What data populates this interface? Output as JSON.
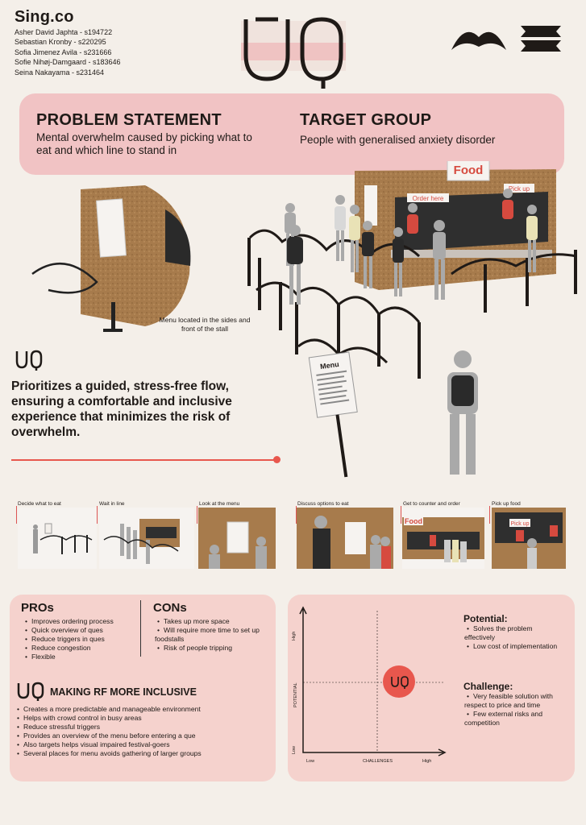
{
  "header": {
    "brand": "Sing.co",
    "members": [
      "Asher David Japhta - s194722",
      "Sebastian Kronby - s220295",
      "Sofia Jimenez Avila - s231666",
      "Sofie Nihøj-Damgaard - s183646",
      "Seina Nakayama - s231464"
    ]
  },
  "problem": {
    "title": "PROBLEM STATEMENT",
    "text": "Mental overwhelm caused by picking what to eat and which line to stand in"
  },
  "target": {
    "title": "TARGET GROUP",
    "text": "People with generalised anxiety disorder"
  },
  "scene": {
    "stall_sign": "Food",
    "order_sign": "Order here",
    "pickup_sign": "Pick up",
    "menu_sign": "Menu",
    "caption": "Menu located in the sides and front of the stall"
  },
  "statement": "Prioritizes a guided, stress-free flow, ensuring a comfortable and inclusive experience that minimizes the risk of overwhelm.",
  "journey": [
    {
      "label": "Decide what to eat"
    },
    {
      "label": "Wait in line"
    },
    {
      "label": "Look at the menu"
    },
    {
      "label": "Discuss options to eat"
    },
    {
      "label": "Get to counter and order"
    },
    {
      "label": "Pick up food"
    }
  ],
  "pros": {
    "title": "PROs",
    "items": [
      "Improves ordering process",
      "Quick overview of ques",
      "Reduce triggers in ques",
      "Reduce congestion",
      "Flexible"
    ]
  },
  "cons": {
    "title": "CONs",
    "items": [
      "Takes up more space",
      "Will require more time to set up foodstalls",
      "Risk of people tripping"
    ]
  },
  "inclusive": {
    "title": "MAKING RF MORE INCLUSIVE",
    "items": [
      "Creates a more predictable and manageable environment",
      "Helps with crowd control in busy areas",
      "Reduce stressful triggers",
      "Provides an overview of the menu before entering a que",
      "Also targets helps visual impaired festival-goers",
      "Several places for menu avoids gathering of larger groups"
    ]
  },
  "matrix": {
    "y_axis": "POTENTIAL",
    "x_axis": "CHALLENGES",
    "y_high": "High",
    "y_low": "Low",
    "x_low": "Low",
    "x_high": "High",
    "potential_title": "Potential:",
    "potential_items": [
      "Solves the problem effectively",
      "Low cost of implementation"
    ],
    "challenge_title": "Challenge:",
    "challenge_items": [
      "Very feasible solution with respect to price and time",
      "Few external risks and competition"
    ]
  },
  "colors": {
    "pink": "#f1c3c4",
    "panel": "#f5d2cd",
    "accent_red": "#e8574d",
    "background": "#f4efe9"
  }
}
